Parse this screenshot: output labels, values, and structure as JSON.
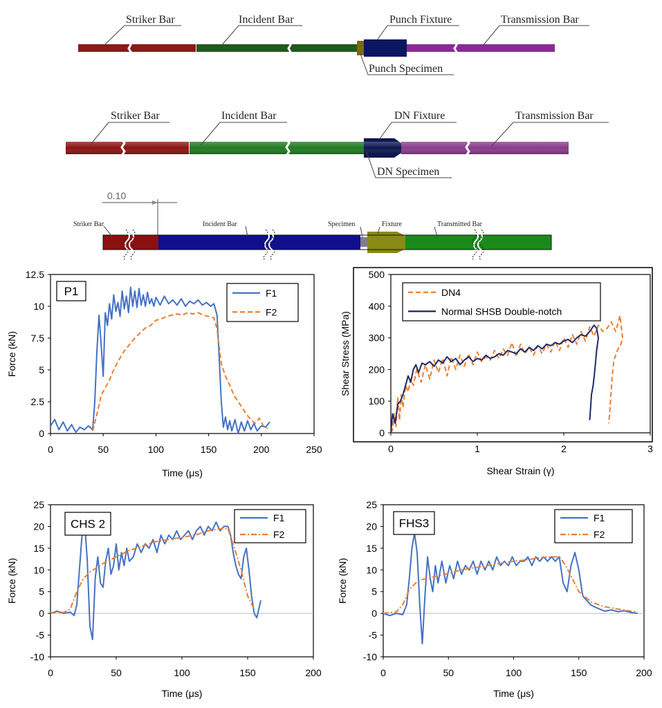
{
  "diagrams": {
    "punch": {
      "labels": {
        "striker": "Striker Bar",
        "incident": "Incident Bar",
        "fixture": "Punch Fixture",
        "transmission": "Transmission Bar",
        "specimen": "Punch Specimen"
      },
      "colors": {
        "striker": "#8b1a1a",
        "incident": "#1f5a1f",
        "fixture": "#0a1660",
        "transmission": "#8b2a96",
        "specimen": "#7a6a10"
      }
    },
    "dn": {
      "labels": {
        "striker": "Striker Bar",
        "incident": "Incident Bar",
        "fixture": "DN Fixture",
        "transmission": "Transmission Bar",
        "specimen": "DN Specimen"
      },
      "colors": {
        "striker": "#8b1414",
        "incident": "#1f7a1f",
        "fixture": "#0d1650",
        "transmission": "#8a3a8a",
        "specimen": "#7a6a10"
      }
    },
    "shsb": {
      "labels": {
        "striker": "Striker Bar",
        "incident": "Incident Bar",
        "specimen": "Specimen",
        "fixture": "Fixture",
        "transmitted": "Transmitted Bar",
        "dimension": "0.10"
      },
      "colors": {
        "striker": "#8b1010",
        "incident": "#10108c",
        "specimen": "#808080",
        "fixture": "#8a8a14",
        "transmitted": "#1a8a1a"
      }
    }
  },
  "chart_data": [
    {
      "id": "p1",
      "type": "line",
      "panel_label": "P1",
      "xlabel": "Time (μs)",
      "ylabel": "Force (kN)",
      "xlim": [
        0,
        250
      ],
      "ylim": [
        0,
        12.5
      ],
      "xticks": [
        "0",
        "50",
        "100",
        "150",
        "200",
        "250"
      ],
      "yticks": [
        "0",
        "2.5",
        "5",
        "7.5",
        "10",
        "12.5"
      ],
      "series": [
        {
          "name": "F1",
          "style": "solid",
          "color": "#4472c4",
          "x": [
            0,
            4,
            8,
            12,
            16,
            20,
            24,
            28,
            32,
            36,
            40,
            42,
            44,
            46,
            48,
            50,
            52,
            54,
            56,
            58,
            60,
            62,
            64,
            66,
            68,
            70,
            72,
            74,
            76,
            78,
            80,
            82,
            84,
            86,
            88,
            90,
            92,
            94,
            96,
            98,
            100,
            104,
            108,
            112,
            116,
            120,
            124,
            128,
            132,
            136,
            140,
            144,
            148,
            152,
            155,
            158,
            160,
            162,
            164,
            166,
            168,
            170,
            172,
            175,
            178,
            181,
            184,
            187,
            190,
            193,
            196,
            200,
            204,
            208
          ],
          "y": [
            0.6,
            1.1,
            0.3,
            0.9,
            0.2,
            0.7,
            0.1,
            0.5,
            0.3,
            0.6,
            0.3,
            2.5,
            6.5,
            9.3,
            7.0,
            4.5,
            9.5,
            8.5,
            10.2,
            9.0,
            10.9,
            9.6,
            10.3,
            9.2,
            11.2,
            9.8,
            10.8,
            9.5,
            11.5,
            10.0,
            11.2,
            9.9,
            11.4,
            10.1,
            10.9,
            10.0,
            11.1,
            10.2,
            10.6,
            10.0,
            10.7,
            10.1,
            10.8,
            10.2,
            10.5,
            10.1,
            10.6,
            10.0,
            10.4,
            10.2,
            10.5,
            10.1,
            10.3,
            10.0,
            10.2,
            9.3,
            6.0,
            2.5,
            0.5,
            1.3,
            0.3,
            1.0,
            0.2,
            1.1,
            0.0,
            0.9,
            0.2,
            1.0,
            0.3,
            0.8,
            0.2,
            0.6,
            0.5,
            0.9
          ]
        },
        {
          "name": "F2",
          "style": "dashed",
          "color": "#ed7d31",
          "x": [
            40,
            44,
            48,
            52,
            56,
            60,
            65,
            70,
            75,
            80,
            85,
            90,
            95,
            100,
            105,
            110,
            115,
            120,
            125,
            130,
            135,
            140,
            145,
            150,
            155,
            158,
            162,
            166,
            170,
            174,
            178,
            182,
            186,
            190,
            194,
            198,
            202,
            206
          ],
          "y": [
            0.2,
            1.5,
            3.0,
            3.6,
            4.2,
            5.0,
            5.8,
            6.5,
            7.0,
            7.5,
            7.9,
            8.3,
            8.5,
            8.9,
            9.0,
            9.2,
            9.3,
            9.4,
            9.3,
            9.5,
            9.4,
            9.5,
            9.3,
            9.2,
            9.1,
            8.2,
            5.5,
            4.5,
            3.8,
            3.0,
            2.5,
            2.0,
            1.5,
            1.1,
            0.8,
            1.2,
            0.6,
            0.4
          ]
        }
      ]
    },
    {
      "id": "dn4",
      "type": "line",
      "panel_label": "",
      "xlabel": "Shear Strain (γ)",
      "ylabel": "Shear Stress (MPa)",
      "xlim": [
        0,
        3
      ],
      "ylim": [
        0,
        500
      ],
      "xticks": [
        "0",
        "1",
        "2",
        "3"
      ],
      "yticks": [
        "0",
        "100",
        "200",
        "300",
        "400",
        "500"
      ],
      "series": [
        {
          "name": "DN4",
          "style": "dashed",
          "color": "#ed7d31",
          "x": [
            0.0,
            0.02,
            0.04,
            0.06,
            0.08,
            0.1,
            0.12,
            0.14,
            0.17,
            0.2,
            0.23,
            0.26,
            0.3,
            0.35,
            0.4,
            0.45,
            0.5,
            0.55,
            0.6,
            0.65,
            0.7,
            0.75,
            0.8,
            0.85,
            0.9,
            0.95,
            1.0,
            1.05,
            1.1,
            1.15,
            1.2,
            1.25,
            1.3,
            1.35,
            1.4,
            1.45,
            1.5,
            1.55,
            1.6,
            1.65,
            1.7,
            1.75,
            1.8,
            1.85,
            1.9,
            1.95,
            2.0,
            2.05,
            2.1,
            2.15,
            2.2,
            2.25,
            2.3,
            2.35,
            2.4,
            2.45,
            2.5,
            2.55,
            2.6,
            2.65,
            2.68,
            2.66,
            2.62,
            2.58,
            2.56,
            2.55,
            2.54,
            2.53,
            2.52
          ],
          "y": [
            0,
            10,
            60,
            20,
            110,
            40,
            120,
            80,
            150,
            130,
            170,
            150,
            200,
            160,
            215,
            170,
            230,
            190,
            235,
            180,
            240,
            200,
            245,
            210,
            250,
            215,
            255,
            225,
            240,
            230,
            260,
            235,
            265,
            245,
            285,
            240,
            280,
            250,
            270,
            245,
            275,
            250,
            280,
            255,
            290,
            260,
            300,
            270,
            310,
            280,
            320,
            290,
            335,
            305,
            340,
            320,
            330,
            350,
            320,
            370,
            300,
            280,
            260,
            230,
            180,
            140,
            100,
            60,
            30
          ]
        },
        {
          "name": "Normal SHSB Double-notch",
          "style": "solid",
          "color": "#1a2a6c",
          "x": [
            0.0,
            0.02,
            0.05,
            0.08,
            0.11,
            0.14,
            0.17,
            0.2,
            0.23,
            0.26,
            0.29,
            0.32,
            0.36,
            0.4,
            0.45,
            0.5,
            0.55,
            0.6,
            0.65,
            0.7,
            0.75,
            0.8,
            0.85,
            0.9,
            0.95,
            1.0,
            1.05,
            1.1,
            1.15,
            1.2,
            1.25,
            1.3,
            1.35,
            1.4,
            1.45,
            1.5,
            1.55,
            1.6,
            1.65,
            1.7,
            1.75,
            1.8,
            1.85,
            1.9,
            1.95,
            2.0,
            2.05,
            2.1,
            2.15,
            2.2,
            2.25,
            2.3,
            2.35,
            2.38,
            2.4,
            2.38,
            2.36,
            2.34,
            2.32,
            2.31,
            2.3
          ],
          "y": [
            0,
            60,
            30,
            90,
            100,
            120,
            150,
            180,
            160,
            200,
            215,
            190,
            220,
            215,
            225,
            210,
            230,
            220,
            240,
            225,
            235,
            215,
            230,
            240,
            225,
            235,
            230,
            245,
            235,
            240,
            250,
            245,
            260,
            255,
            250,
            265,
            255,
            270,
            260,
            275,
            265,
            280,
            275,
            285,
            280,
            290,
            295,
            285,
            300,
            310,
            305,
            320,
            340,
            330,
            300,
            260,
            200,
            150,
            120,
            80,
            40
          ]
        }
      ]
    },
    {
      "id": "chs2",
      "type": "line",
      "panel_label": "CHS 2",
      "xlabel": "Time (μs)",
      "ylabel": "Force (kN)",
      "xlim": [
        0,
        200
      ],
      "ylim": [
        -10,
        25
      ],
      "xticks": [
        "0",
        "50",
        "100",
        "150",
        "200"
      ],
      "yticks": [
        "-10",
        "-5",
        "0",
        "5",
        "10",
        "15",
        "20",
        "25"
      ],
      "series": [
        {
          "name": "F1",
          "style": "solid",
          "color": "#4472c4",
          "x": [
            0,
            5,
            10,
            15,
            18,
            20,
            22,
            24,
            26,
            28,
            30,
            32,
            34,
            36,
            38,
            40,
            42,
            44,
            46,
            48,
            50,
            52,
            54,
            56,
            58,
            60,
            63,
            66,
            69,
            72,
            75,
            78,
            81,
            84,
            87,
            90,
            93,
            96,
            99,
            102,
            105,
            108,
            111,
            114,
            117,
            120,
            123,
            126,
            129,
            132,
            135,
            137,
            139,
            141,
            143,
            145,
            147,
            149,
            151,
            153,
            155,
            157,
            160
          ],
          "y": [
            0,
            0.5,
            0,
            0.3,
            -0.5,
            2,
            10,
            18,
            21,
            12,
            -3,
            -6,
            8,
            13,
            7,
            6,
            12,
            15,
            9,
            11,
            16,
            10,
            14,
            11,
            15,
            12,
            13,
            16,
            14,
            16,
            15,
            17,
            14,
            18,
            16,
            18,
            17,
            19,
            17,
            18,
            19,
            17,
            19,
            20,
            18,
            20,
            19,
            21,
            19,
            20,
            20,
            18,
            14,
            11,
            9,
            8,
            13,
            15,
            10,
            4,
            0,
            -1,
            3
          ]
        },
        {
          "name": "F2",
          "style": "dashdot",
          "color": "#ed7d31",
          "x": [
            0,
            5,
            10,
            15,
            20,
            25,
            30,
            40,
            50,
            60,
            70,
            80,
            90,
            100,
            110,
            120,
            130,
            135,
            140,
            145,
            150,
            155
          ],
          "y": [
            0,
            0.3,
            0.2,
            1.0,
            5,
            8,
            9.5,
            11.5,
            13,
            14.5,
            15.5,
            16.5,
            17,
            17.5,
            18,
            19,
            19.5,
            19.5,
            15,
            10,
            4,
            1
          ]
        }
      ]
    },
    {
      "id": "fhs3",
      "type": "line",
      "panel_label": "FHS3",
      "xlabel": "Time (μs)",
      "ylabel": "Force (kN)",
      "xlim": [
        0,
        200
      ],
      "ylim": [
        -10,
        25
      ],
      "xticks": [
        "0",
        "50",
        "100",
        "150",
        "200"
      ],
      "yticks": [
        "-10",
        "-5",
        "0",
        "5",
        "10",
        "15",
        "20",
        "25"
      ],
      "series": [
        {
          "name": "F1",
          "style": "solid",
          "color": "#4472c4",
          "x": [
            0,
            5,
            10,
            15,
            18,
            20,
            22,
            24,
            26,
            28,
            30,
            32,
            34,
            36,
            38,
            40,
            42,
            45,
            48,
            51,
            54,
            57,
            60,
            63,
            66,
            69,
            72,
            75,
            78,
            81,
            84,
            87,
            90,
            93,
            96,
            99,
            102,
            105,
            108,
            111,
            114,
            117,
            120,
            123,
            126,
            129,
            132,
            135,
            138,
            141,
            144,
            147,
            150,
            153,
            156,
            159,
            162,
            166,
            170,
            175,
            180,
            185,
            190,
            195
          ],
          "y": [
            0,
            -0.5,
            0,
            -0.3,
            2,
            8,
            15,
            18.5,
            14,
            2,
            -7,
            4,
            13,
            8,
            5,
            11,
            7,
            12,
            7,
            11,
            8,
            12,
            9,
            11,
            10,
            12,
            9,
            12,
            10,
            12,
            10,
            13,
            11,
            12,
            11,
            13,
            11,
            12,
            12,
            13,
            11,
            13,
            12,
            13,
            12,
            13,
            12,
            13,
            7,
            5,
            11,
            14,
            10,
            4,
            3,
            2,
            1.5,
            1,
            0.5,
            0.8,
            0.4,
            0.6,
            0.2,
            0
          ]
        },
        {
          "name": "F2",
          "style": "dashdot",
          "color": "#ed7d31",
          "x": [
            0,
            5,
            10,
            15,
            20,
            25,
            30,
            40,
            50,
            60,
            70,
            80,
            90,
            100,
            110,
            120,
            130,
            135,
            140,
            145,
            150,
            160,
            170,
            180,
            190,
            195
          ],
          "y": [
            0,
            0.2,
            0.3,
            2,
            5.5,
            7,
            7.8,
            8.5,
            9.2,
            10,
            10.5,
            11,
            11.5,
            12,
            12.3,
            12.8,
            13,
            13,
            11,
            8,
            5,
            2.5,
            1.5,
            1,
            0.5,
            0.3
          ]
        }
      ]
    }
  ]
}
